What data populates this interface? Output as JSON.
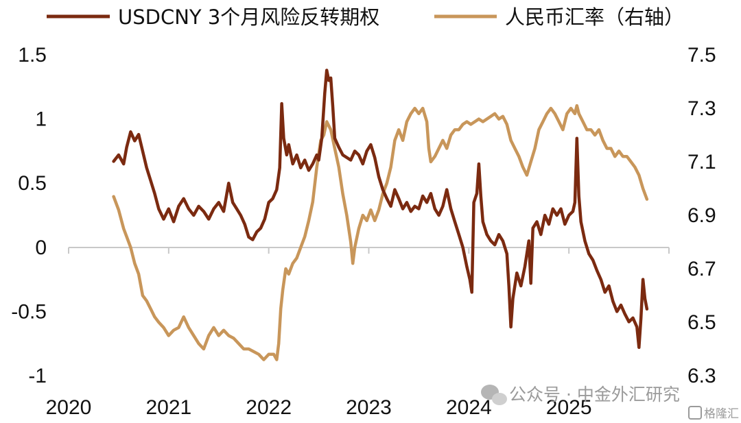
{
  "chart_data": {
    "type": "line",
    "legend_position": "top",
    "x_ticks": [
      "2020",
      "2021",
      "2022",
      "2023",
      "2024",
      "2025"
    ],
    "x_range": [
      2020.0,
      2026.0
    ],
    "left_axis": {
      "ticks": [
        "1.5",
        "1",
        "0.5",
        "0",
        "-0.5",
        "-1"
      ],
      "range": [
        -1,
        1.5
      ]
    },
    "right_axis": {
      "ticks": [
        "7.5",
        "7.3",
        "7.1",
        "6.9",
        "6.7",
        "6.5",
        "6.3"
      ],
      "range": [
        6.3,
        7.5
      ]
    },
    "series": [
      {
        "name": "USDCNY 3个月风险反转期权",
        "axis": "left",
        "color": "#7b2a10",
        "points": [
          [
            2020.45,
            0.67
          ],
          [
            2020.5,
            0.72
          ],
          [
            2020.55,
            0.65
          ],
          [
            2020.58,
            0.78
          ],
          [
            2020.62,
            0.9
          ],
          [
            2020.66,
            0.83
          ],
          [
            2020.7,
            0.88
          ],
          [
            2020.74,
            0.75
          ],
          [
            2020.78,
            0.62
          ],
          [
            2020.82,
            0.52
          ],
          [
            2020.86,
            0.42
          ],
          [
            2020.9,
            0.3
          ],
          [
            2020.95,
            0.22
          ],
          [
            2021.0,
            0.3
          ],
          [
            2021.05,
            0.2
          ],
          [
            2021.1,
            0.32
          ],
          [
            2021.15,
            0.38
          ],
          [
            2021.2,
            0.3
          ],
          [
            2021.25,
            0.25
          ],
          [
            2021.3,
            0.32
          ],
          [
            2021.35,
            0.28
          ],
          [
            2021.4,
            0.22
          ],
          [
            2021.45,
            0.3
          ],
          [
            2021.5,
            0.35
          ],
          [
            2021.55,
            0.28
          ],
          [
            2021.6,
            0.5
          ],
          [
            2021.64,
            0.35
          ],
          [
            2021.68,
            0.3
          ],
          [
            2021.72,
            0.25
          ],
          [
            2021.76,
            0.18
          ],
          [
            2021.8,
            0.08
          ],
          [
            2021.84,
            0.06
          ],
          [
            2021.88,
            0.12
          ],
          [
            2021.92,
            0.15
          ],
          [
            2021.96,
            0.22
          ],
          [
            2022.0,
            0.35
          ],
          [
            2022.04,
            0.38
          ],
          [
            2022.08,
            0.45
          ],
          [
            2022.11,
            0.62
          ],
          [
            2022.13,
            1.12
          ],
          [
            2022.15,
            0.85
          ],
          [
            2022.18,
            0.72
          ],
          [
            2022.2,
            0.8
          ],
          [
            2022.24,
            0.65
          ],
          [
            2022.28,
            0.72
          ],
          [
            2022.32,
            0.62
          ],
          [
            2022.36,
            0.68
          ],
          [
            2022.4,
            0.6
          ],
          [
            2022.44,
            0.65
          ],
          [
            2022.48,
            0.72
          ],
          [
            2022.5,
            0.68
          ],
          [
            2022.53,
            0.85
          ],
          [
            2022.56,
            1.2
          ],
          [
            2022.58,
            1.38
          ],
          [
            2022.6,
            1.3
          ],
          [
            2022.62,
            1.32
          ],
          [
            2022.64,
            1.1
          ],
          [
            2022.66,
            0.85
          ],
          [
            2022.7,
            0.78
          ],
          [
            2022.74,
            0.72
          ],
          [
            2022.78,
            0.7
          ],
          [
            2022.82,
            0.68
          ],
          [
            2022.86,
            0.75
          ],
          [
            2022.9,
            0.72
          ],
          [
            2022.94,
            0.65
          ],
          [
            2022.98,
            0.75
          ],
          [
            2023.02,
            0.8
          ],
          [
            2023.06,
            0.7
          ],
          [
            2023.1,
            0.55
          ],
          [
            2023.14,
            0.45
          ],
          [
            2023.18,
            0.38
          ],
          [
            2023.22,
            0.32
          ],
          [
            2023.26,
            0.45
          ],
          [
            2023.3,
            0.38
          ],
          [
            2023.34,
            0.3
          ],
          [
            2023.38,
            0.35
          ],
          [
            2023.42,
            0.28
          ],
          [
            2023.46,
            0.32
          ],
          [
            2023.5,
            0.3
          ],
          [
            2023.54,
            0.4
          ],
          [
            2023.58,
            0.35
          ],
          [
            2023.62,
            0.42
          ],
          [
            2023.66,
            0.3
          ],
          [
            2023.7,
            0.25
          ],
          [
            2023.74,
            0.32
          ],
          [
            2023.78,
            0.45
          ],
          [
            2023.82,
            0.3
          ],
          [
            2023.86,
            0.2
          ],
          [
            2023.9,
            0.1
          ],
          [
            2023.94,
            0.0
          ],
          [
            2023.98,
            -0.15
          ],
          [
            2024.01,
            -0.25
          ],
          [
            2024.03,
            -0.35
          ],
          [
            2024.05,
            0.35
          ],
          [
            2024.08,
            0.42
          ],
          [
            2024.1,
            0.65
          ],
          [
            2024.12,
            0.4
          ],
          [
            2024.14,
            0.2
          ],
          [
            2024.18,
            0.1
          ],
          [
            2024.22,
            0.05
          ],
          [
            2024.26,
            0.02
          ],
          [
            2024.3,
            0.1
          ],
          [
            2024.34,
            0.05
          ],
          [
            2024.38,
            -0.05
          ],
          [
            2024.4,
            -0.3
          ],
          [
            2024.42,
            -0.62
          ],
          [
            2024.44,
            -0.4
          ],
          [
            2024.48,
            -0.2
          ],
          [
            2024.52,
            -0.3
          ],
          [
            2024.56,
            -0.15
          ],
          [
            2024.6,
            0.05
          ],
          [
            2024.62,
            -0.28
          ],
          [
            2024.64,
            0.15
          ],
          [
            2024.68,
            0.2
          ],
          [
            2024.72,
            0.1
          ],
          [
            2024.76,
            0.25
          ],
          [
            2024.8,
            0.18
          ],
          [
            2024.84,
            0.3
          ],
          [
            2024.88,
            0.25
          ],
          [
            2024.92,
            0.3
          ],
          [
            2024.96,
            0.18
          ],
          [
            2025.0,
            0.25
          ],
          [
            2025.04,
            0.28
          ],
          [
            2025.06,
            0.35
          ],
          [
            2025.08,
            0.85
          ],
          [
            2025.1,
            0.4
          ],
          [
            2025.12,
            0.2
          ],
          [
            2025.16,
            0.05
          ],
          [
            2025.2,
            -0.05
          ],
          [
            2025.24,
            -0.1
          ],
          [
            2025.28,
            -0.18
          ],
          [
            2025.32,
            -0.25
          ],
          [
            2025.36,
            -0.35
          ],
          [
            2025.4,
            -0.3
          ],
          [
            2025.44,
            -0.42
          ],
          [
            2025.48,
            -0.5
          ],
          [
            2025.52,
            -0.45
          ],
          [
            2025.56,
            -0.52
          ],
          [
            2025.6,
            -0.58
          ],
          [
            2025.64,
            -0.55
          ],
          [
            2025.68,
            -0.62
          ],
          [
            2025.7,
            -0.78
          ],
          [
            2025.72,
            -0.55
          ],
          [
            2025.74,
            -0.25
          ],
          [
            2025.76,
            -0.4
          ],
          [
            2025.78,
            -0.48
          ]
        ]
      },
      {
        "name": "人民币汇率（右轴）",
        "axis": "right",
        "color": "#c8965a",
        "points": [
          [
            2020.45,
            6.97
          ],
          [
            2020.5,
            6.92
          ],
          [
            2020.55,
            6.85
          ],
          [
            2020.58,
            6.82
          ],
          [
            2020.62,
            6.78
          ],
          [
            2020.66,
            6.72
          ],
          [
            2020.7,
            6.68
          ],
          [
            2020.74,
            6.6
          ],
          [
            2020.78,
            6.58
          ],
          [
            2020.82,
            6.55
          ],
          [
            2020.86,
            6.52
          ],
          [
            2020.9,
            6.5
          ],
          [
            2020.95,
            6.48
          ],
          [
            2021.0,
            6.45
          ],
          [
            2021.05,
            6.47
          ],
          [
            2021.1,
            6.48
          ],
          [
            2021.15,
            6.52
          ],
          [
            2021.2,
            6.48
          ],
          [
            2021.25,
            6.45
          ],
          [
            2021.3,
            6.42
          ],
          [
            2021.35,
            6.4
          ],
          [
            2021.4,
            6.45
          ],
          [
            2021.45,
            6.48
          ],
          [
            2021.5,
            6.45
          ],
          [
            2021.55,
            6.47
          ],
          [
            2021.6,
            6.45
          ],
          [
            2021.65,
            6.44
          ],
          [
            2021.7,
            6.42
          ],
          [
            2021.75,
            6.4
          ],
          [
            2021.8,
            6.4
          ],
          [
            2021.85,
            6.39
          ],
          [
            2021.9,
            6.38
          ],
          [
            2021.95,
            6.36
          ],
          [
            2022.0,
            6.38
          ],
          [
            2022.05,
            6.38
          ],
          [
            2022.08,
            6.36
          ],
          [
            2022.1,
            6.42
          ],
          [
            2022.12,
            6.55
          ],
          [
            2022.14,
            6.62
          ],
          [
            2022.17,
            6.7
          ],
          [
            2022.2,
            6.68
          ],
          [
            2022.24,
            6.72
          ],
          [
            2022.28,
            6.74
          ],
          [
            2022.32,
            6.78
          ],
          [
            2022.36,
            6.82
          ],
          [
            2022.4,
            6.88
          ],
          [
            2022.44,
            6.95
          ],
          [
            2022.48,
            7.08
          ],
          [
            2022.52,
            7.18
          ],
          [
            2022.55,
            7.2
          ],
          [
            2022.58,
            7.25
          ],
          [
            2022.62,
            7.22
          ],
          [
            2022.66,
            7.15
          ],
          [
            2022.7,
            7.08
          ],
          [
            2022.74,
            6.98
          ],
          [
            2022.78,
            6.9
          ],
          [
            2022.82,
            6.8
          ],
          [
            2022.84,
            6.72
          ],
          [
            2022.86,
            6.78
          ],
          [
            2022.9,
            6.85
          ],
          [
            2022.94,
            6.9
          ],
          [
            2022.98,
            6.88
          ],
          [
            2023.02,
            6.92
          ],
          [
            2023.06,
            6.88
          ],
          [
            2023.1,
            6.92
          ],
          [
            2023.14,
            6.98
          ],
          [
            2023.18,
            7.02
          ],
          [
            2023.22,
            7.08
          ],
          [
            2023.26,
            7.18
          ],
          [
            2023.3,
            7.22
          ],
          [
            2023.34,
            7.18
          ],
          [
            2023.38,
            7.25
          ],
          [
            2023.42,
            7.28
          ],
          [
            2023.46,
            7.3
          ],
          [
            2023.5,
            7.28
          ],
          [
            2023.54,
            7.3
          ],
          [
            2023.58,
            7.25
          ],
          [
            2023.6,
            7.15
          ],
          [
            2023.62,
            7.1
          ],
          [
            2023.66,
            7.12
          ],
          [
            2023.7,
            7.15
          ],
          [
            2023.74,
            7.18
          ],
          [
            2023.78,
            7.15
          ],
          [
            2023.82,
            7.2
          ],
          [
            2023.86,
            7.22
          ],
          [
            2023.9,
            7.22
          ],
          [
            2023.94,
            7.24
          ],
          [
            2023.98,
            7.25
          ],
          [
            2024.02,
            7.24
          ],
          [
            2024.06,
            7.25
          ],
          [
            2024.1,
            7.26
          ],
          [
            2024.14,
            7.25
          ],
          [
            2024.18,
            7.26
          ],
          [
            2024.22,
            7.27
          ],
          [
            2024.26,
            7.28
          ],
          [
            2024.3,
            7.26
          ],
          [
            2024.34,
            7.27
          ],
          [
            2024.38,
            7.24
          ],
          [
            2024.42,
            7.18
          ],
          [
            2024.46,
            7.15
          ],
          [
            2024.5,
            7.12
          ],
          [
            2024.54,
            7.08
          ],
          [
            2024.58,
            7.05
          ],
          [
            2024.62,
            7.1
          ],
          [
            2024.66,
            7.15
          ],
          [
            2024.7,
            7.22
          ],
          [
            2024.74,
            7.25
          ],
          [
            2024.78,
            7.28
          ],
          [
            2024.82,
            7.3
          ],
          [
            2024.86,
            7.28
          ],
          [
            2024.9,
            7.25
          ],
          [
            2024.94,
            7.22
          ],
          [
            2024.98,
            7.28
          ],
          [
            2025.02,
            7.3
          ],
          [
            2025.06,
            7.28
          ],
          [
            2025.08,
            7.31
          ],
          [
            2025.1,
            7.28
          ],
          [
            2025.14,
            7.25
          ],
          [
            2025.18,
            7.22
          ],
          [
            2025.22,
            7.22
          ],
          [
            2025.26,
            7.2
          ],
          [
            2025.3,
            7.22
          ],
          [
            2025.34,
            7.18
          ],
          [
            2025.38,
            7.15
          ],
          [
            2025.42,
            7.15
          ],
          [
            2025.46,
            7.12
          ],
          [
            2025.5,
            7.14
          ],
          [
            2025.54,
            7.12
          ],
          [
            2025.58,
            7.12
          ],
          [
            2025.62,
            7.1
          ],
          [
            2025.66,
            7.08
          ],
          [
            2025.7,
            7.05
          ],
          [
            2025.74,
            7.0
          ],
          [
            2025.78,
            6.96
          ]
        ]
      }
    ]
  },
  "watermark": {
    "text": "公众号 · 中金外汇研究",
    "corner_text": "格隆汇",
    "icon": "wechat-icon"
  }
}
